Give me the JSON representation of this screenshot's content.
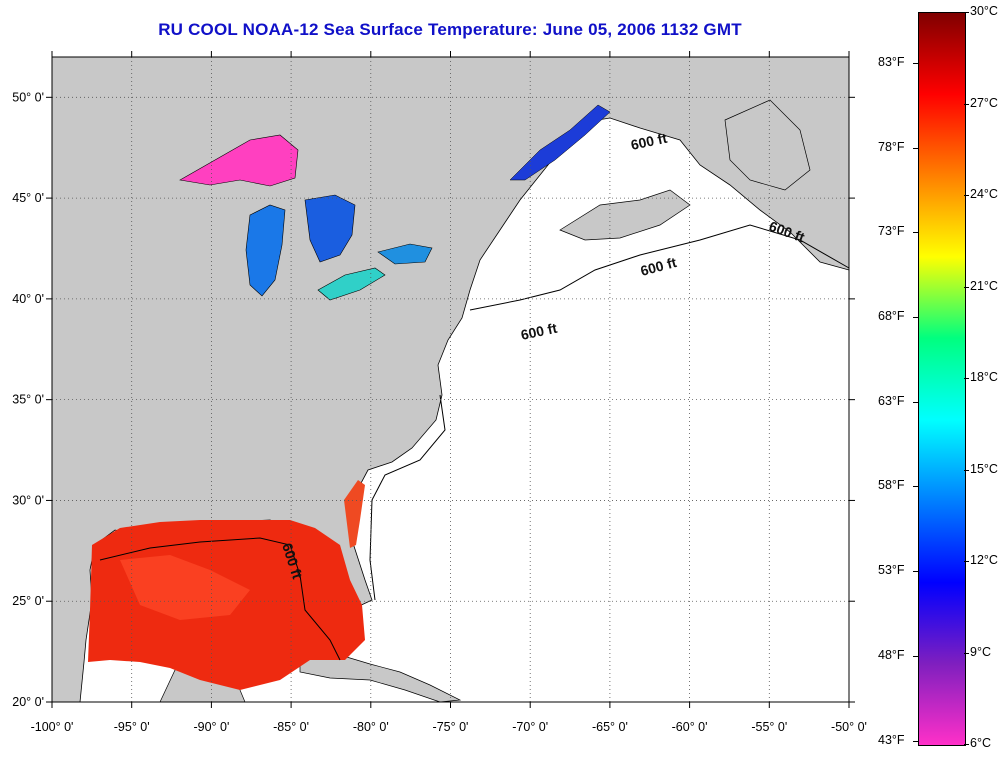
{
  "title": "RU COOL  NOAA-12  Sea Surface Temperature:  June 05, 2006 1132 GMT",
  "map": {
    "lon_range": [
      -100,
      -50
    ],
    "lat_range": [
      20,
      52
    ],
    "lon_labels": [
      "-100° 0'",
      "-95° 0'",
      "-90° 0'",
      "-85° 0'",
      "-80° 0'",
      "-75° 0'",
      "-70° 0'",
      "-65° 0'",
      "-60° 0'",
      "-55° 0'",
      "-50° 0'"
    ],
    "lon_values": [
      -100,
      -95,
      -90,
      -85,
      -80,
      -75,
      -70,
      -65,
      -60,
      -55,
      -50
    ],
    "lat_labels": [
      "20° 0'",
      "25° 0'",
      "30° 0'",
      "35° 0'",
      "40° 0'",
      "45° 0'",
      "50° 0'"
    ],
    "lat_values": [
      20,
      25,
      30,
      35,
      40,
      45,
      50
    ],
    "gridlines": true,
    "land_color": "#c8c8c8",
    "ocean_color": "#ffffff",
    "contour_labels": [
      "600 ft",
      "600 ft",
      "600 ft",
      "600 ft",
      "600 ft"
    ]
  },
  "colorbar": {
    "celsius_labels": [
      "30°C",
      "27°C",
      "24°C",
      "21°C",
      "18°C",
      "15°C",
      "12°C",
      "9°C",
      "6°C"
    ],
    "celsius_values": [
      30,
      27,
      24,
      21,
      18,
      15,
      12,
      9,
      6
    ],
    "fahrenheit_labels": [
      "83°F",
      "78°F",
      "73°F",
      "68°F",
      "63°F",
      "58°F",
      "53°F",
      "48°F",
      "43°F"
    ],
    "fahrenheit_values": [
      83,
      78,
      73,
      68,
      63,
      58,
      53,
      48,
      43
    ],
    "range_c": [
      6,
      30
    ],
    "colors": [
      "#ff30c8",
      "#7f1fbf",
      "#0000ff",
      "#007fff",
      "#00ffff",
      "#00ff7f",
      "#ffff00",
      "#ff7f00",
      "#ff0000",
      "#800000"
    ]
  }
}
